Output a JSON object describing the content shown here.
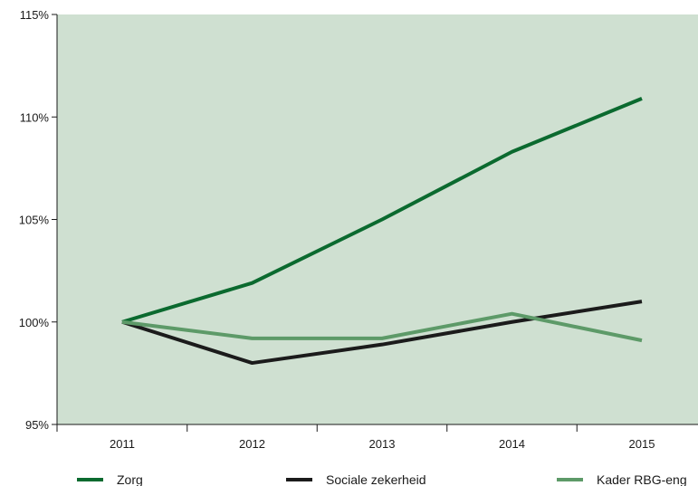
{
  "chart_data": {
    "type": "line",
    "title": "",
    "xlabel": "",
    "ylabel": "",
    "categories": [
      "2011",
      "2012",
      "2013",
      "2014",
      "2015"
    ],
    "ylim": [
      95,
      115
    ],
    "y_ticks": [
      {
        "value": 95,
        "label": "95%"
      },
      {
        "value": 100,
        "label": "100%"
      },
      {
        "value": 105,
        "label": "105%"
      },
      {
        "value": 110,
        "label": "110%"
      },
      {
        "value": 115,
        "label": "115%"
      }
    ],
    "grid": false,
    "legend_position": "bottom",
    "plot_background": "#cfe0d1",
    "series": [
      {
        "name": "Zorg",
        "color": "#0b6a2f",
        "values": [
          100,
          101.9,
          105.0,
          108.3,
          110.9
        ]
      },
      {
        "name": "Sociale zekerheid",
        "color": "#1b1b1b",
        "values": [
          100,
          98.0,
          98.9,
          100.0,
          101.0
        ]
      },
      {
        "name": "Kader RBG-eng",
        "color": "#5d9a68",
        "values": [
          100,
          99.2,
          99.2,
          100.4,
          99.1
        ]
      }
    ]
  }
}
